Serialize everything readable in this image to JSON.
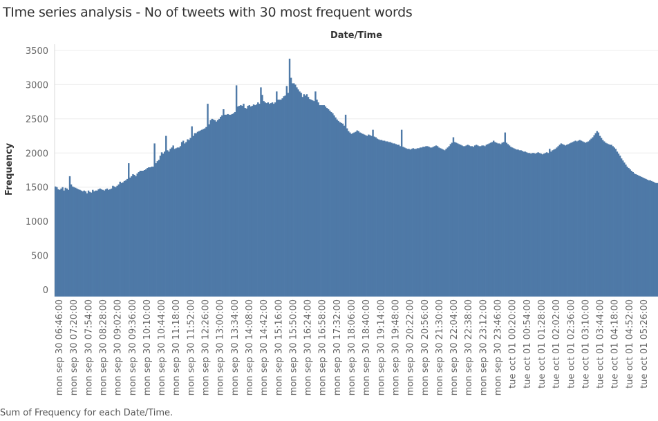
{
  "title": "TIme series analysis - No of tweets with 30 most frequent words",
  "column_header": "Date/Time",
  "footer": "Sum of Frequency for each Date/Time.",
  "colors": {
    "bar": "#4e79a7",
    "grid": "#ececec",
    "axis": "#d8d8d8"
  },
  "chart_data": {
    "type": "bar",
    "title": "TIme series analysis - No of tweets with 30 most frequent words",
    "xlabel": "Date/Time",
    "ylabel": "Frequency",
    "ylim": [
      0,
      3500
    ],
    "y_ticks": [
      0,
      500,
      1000,
      1500,
      2000,
      2500,
      3000,
      3500
    ],
    "grid": true,
    "x_tick_labels": [
      "mon sep 30 06:46:00",
      "mon sep 30 07:20:00",
      "mon sep 30 07:54:00",
      "mon sep 30 08:28:00",
      "mon sep 30 09:02:00",
      "mon sep 30 09:36:00",
      "mon sep 30 10:10:00",
      "mon sep 30 10:44:00",
      "mon sep 30 11:18:00",
      "mon sep 30 11:52:00",
      "mon sep 30 12:26:00",
      "mon sep 30 13:00:00",
      "mon sep 30 13:34:00",
      "mon sep 30 14:08:00",
      "mon sep 30 14:42:00",
      "mon sep 30 15:16:00",
      "mon sep 30 15:50:00",
      "mon sep 30 16:24:00",
      "mon sep 30 16:58:00",
      "mon sep 30 17:32:00",
      "mon sep 30 18:06:00",
      "mon sep 30 18:40:00",
      "mon sep 30 19:14:00",
      "mon sep 30 19:48:00",
      "mon sep 30 20:22:00",
      "mon sep 30 20:56:00",
      "mon sep 30 21:30:00",
      "mon sep 30 22:04:00",
      "mon sep 30 22:38:00",
      "mon sep 30 23:12:00",
      "mon sep 30 23:46:00",
      "tue oct 01 00:20:00",
      "tue oct 01 00:54:00",
      "tue oct 01 01:28:00",
      "tue oct 01 02:02:00",
      "tue oct 01 02:36:00",
      "tue oct 01 03:10:00",
      "tue oct 01 03:44:00",
      "tue oct 01 04:18:00",
      "tue oct 01 04:52:00",
      "tue oct 01 05:26:00"
    ],
    "series": [
      {
        "start": "mon sep 30 06:46:00",
        "interval_minutes": 2,
        "values": [
          1510,
          1500,
          1470,
          1460,
          1480,
          1500,
          1450,
          1490,
          1480,
          1460,
          1660,
          1540,
          1510,
          1500,
          1490,
          1480,
          1470,
          1460,
          1450,
          1440,
          1450,
          1440,
          1410,
          1450,
          1430,
          1420,
          1460,
          1440,
          1450,
          1450,
          1470,
          1480,
          1470,
          1460,
          1450,
          1470,
          1480,
          1460,
          1470,
          1480,
          1520,
          1510,
          1500,
          1520,
          1540,
          1580,
          1560,
          1570,
          1590,
          1600,
          1620,
          1850,
          1640,
          1660,
          1690,
          1680,
          1660,
          1700,
          1720,
          1740,
          1740,
          1740,
          1750,
          1760,
          1780,
          1790,
          1790,
          1800,
          1800,
          2140,
          1850,
          1880,
          1900,
          1960,
          2010,
          1990,
          2020,
          2250,
          2040,
          2020,
          2060,
          2080,
          2110,
          2060,
          2070,
          2080,
          2080,
          2100,
          2160,
          2180,
          2140,
          2160,
          2200,
          2190,
          2220,
          2390,
          2250,
          2290,
          2290,
          2310,
          2320,
          2330,
          2340,
          2350,
          2360,
          2380,
          2720,
          2420,
          2480,
          2500,
          2490,
          2480,
          2460,
          2480,
          2500,
          2530,
          2550,
          2640,
          2560,
          2560,
          2570,
          2560,
          2560,
          2570,
          2580,
          2600,
          2990,
          2680,
          2690,
          2700,
          2690,
          2720,
          2660,
          2650,
          2690,
          2700,
          2680,
          2690,
          2710,
          2700,
          2710,
          2740,
          2720,
          2960,
          2850,
          2760,
          2740,
          2730,
          2740,
          2720,
          2730,
          2740,
          2720,
          2740,
          2900,
          2780,
          2780,
          2780,
          2800,
          2830,
          2840,
          2980,
          2880,
          3380,
          3100,
          3020,
          3020,
          3000,
          2960,
          2930,
          2900,
          2880,
          2820,
          2860,
          2840,
          2860,
          2820,
          2790,
          2780,
          2770,
          2760,
          2900,
          2780,
          2740,
          2700,
          2700,
          2700,
          2700,
          2680,
          2660,
          2640,
          2620,
          2600,
          2580,
          2550,
          2520,
          2490,
          2470,
          2450,
          2440,
          2430,
          2400,
          2560,
          2360,
          2320,
          2300,
          2280,
          2290,
          2300,
          2310,
          2330,
          2320,
          2300,
          2290,
          2280,
          2270,
          2260,
          2250,
          2270,
          2260,
          2250,
          2340,
          2240,
          2230,
          2210,
          2200,
          2190,
          2190,
          2180,
          2180,
          2170,
          2170,
          2160,
          2160,
          2150,
          2140,
          2140,
          2130,
          2120,
          2120,
          2100,
          2340,
          2090,
          2080,
          2070,
          2060,
          2060,
          2050,
          2060,
          2070,
          2060,
          2060,
          2070,
          2070,
          2080,
          2080,
          2090,
          2090,
          2100,
          2100,
          2090,
          2080,
          2080,
          2090,
          2100,
          2110,
          2100,
          2080,
          2070,
          2060,
          2050,
          2040,
          2060,
          2080,
          2100,
          2130,
          2150,
          2230,
          2160,
          2150,
          2140,
          2130,
          2120,
          2110,
          2100,
          2100,
          2110,
          2120,
          2110,
          2100,
          2100,
          2090,
          2110,
          2120,
          2110,
          2100,
          2100,
          2110,
          2110,
          2100,
          2120,
          2130,
          2140,
          2150,
          2160,
          2180,
          2160,
          2150,
          2140,
          2140,
          2130,
          2150,
          2160,
          2300,
          2150,
          2130,
          2110,
          2090,
          2080,
          2070,
          2060,
          2050,
          2050,
          2040,
          2040,
          2030,
          2020,
          2020,
          2010,
          2000,
          2000,
          1990,
          2000,
          2000,
          1990,
          2000,
          2010,
          2000,
          1990,
          1980,
          1990,
          2000,
          2010,
          2000,
          2060,
          2020,
          2040,
          2050,
          2060,
          2080,
          2100,
          2120,
          2140,
          2130,
          2120,
          2110,
          2120,
          2130,
          2140,
          2150,
          2160,
          2170,
          2180,
          2170,
          2180,
          2190,
          2180,
          2170,
          2160,
          2150,
          2160,
          2170,
          2190,
          2210,
          2230,
          2260,
          2290,
          2320,
          2300,
          2250,
          2220,
          2190,
          2170,
          2150,
          2140,
          2130,
          2120,
          2120,
          2100,
          2080,
          2060,
          2020,
          1990,
          1960,
          1920,
          1890,
          1860,
          1830,
          1800,
          1780,
          1760,
          1740,
          1720,
          1700,
          1690,
          1680,
          1670,
          1660,
          1650,
          1640,
          1630,
          1620,
          1610,
          1600,
          1600,
          1590,
          1580,
          1570,
          1560,
          1560
        ]
      }
    ]
  }
}
